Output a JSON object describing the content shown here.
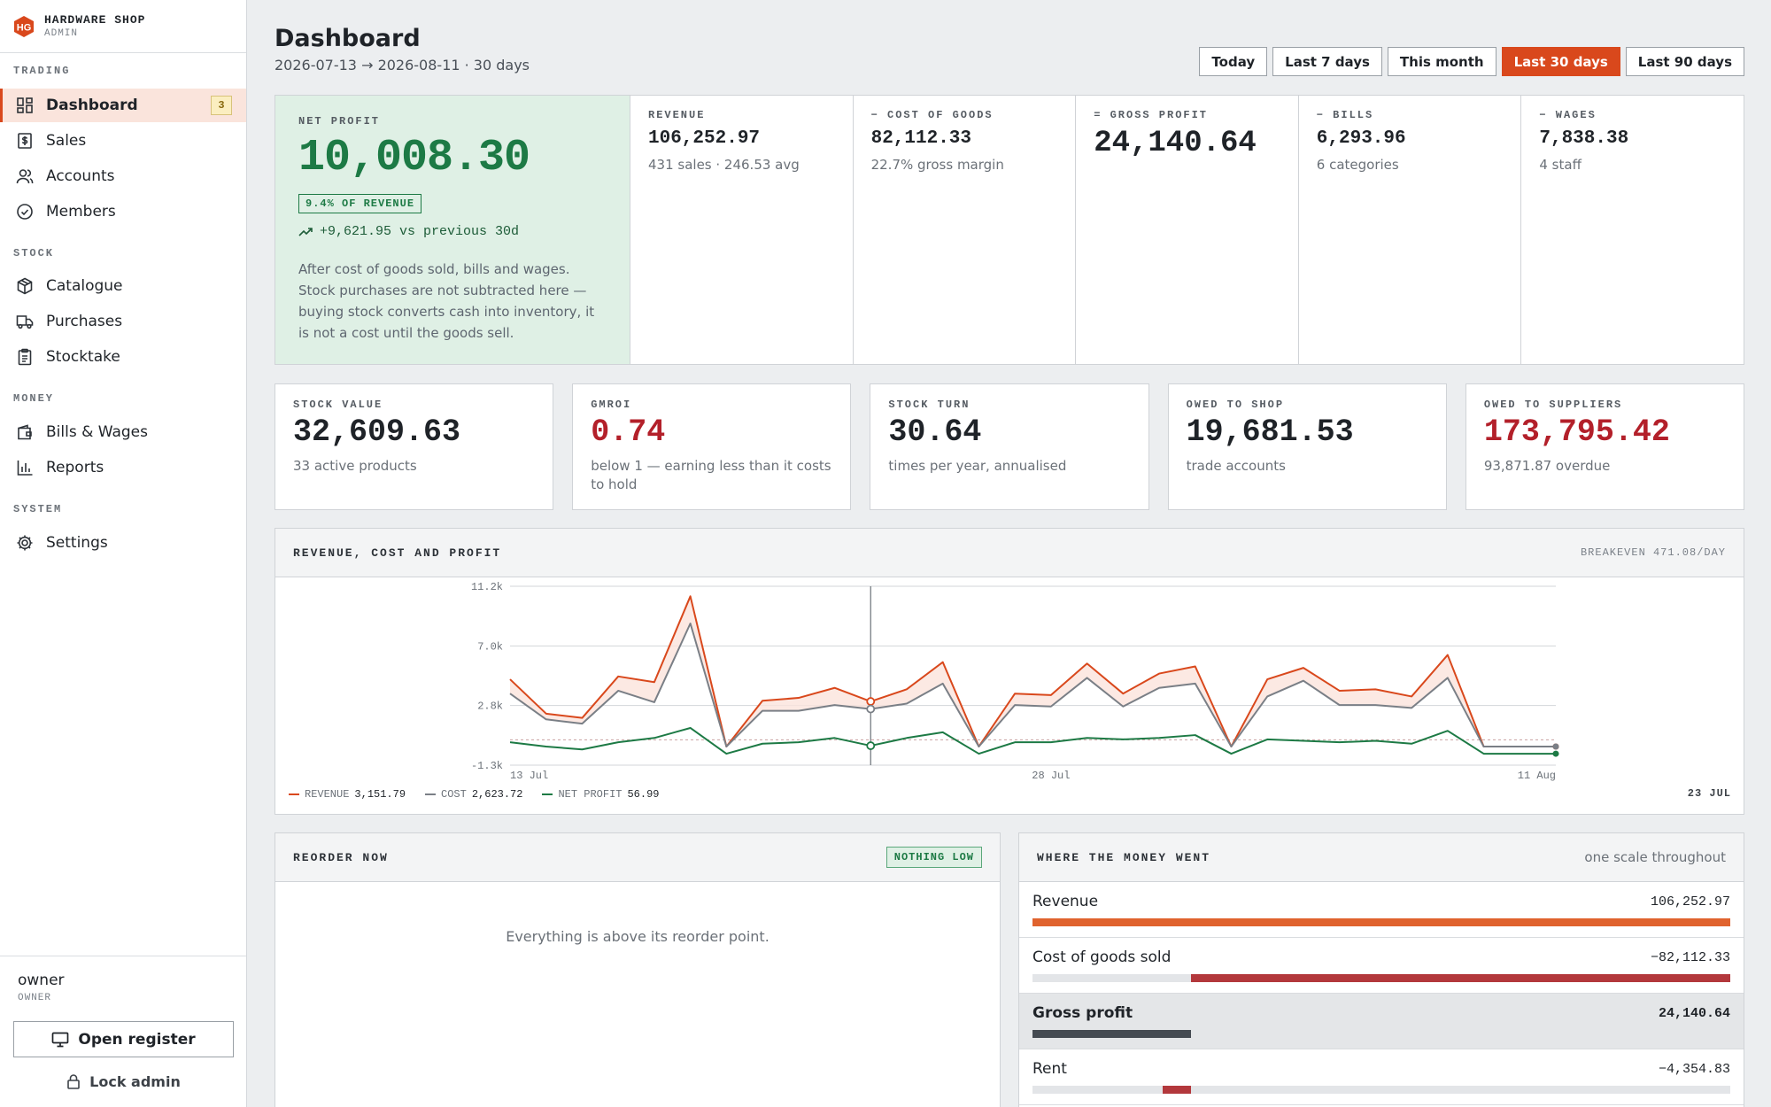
{
  "brand": {
    "name": "HARDWARE SHOP",
    "sub": "ADMIN",
    "logo_text": "HG"
  },
  "sidebar": {
    "sections": [
      {
        "title": "TRADING",
        "items": [
          {
            "label": "Dashboard",
            "icon": "dashboard-icon",
            "active": true,
            "badge": "3"
          },
          {
            "label": "Sales",
            "icon": "receipt-icon"
          },
          {
            "label": "Accounts",
            "icon": "users-icon"
          },
          {
            "label": "Members",
            "icon": "badge-icon"
          }
        ]
      },
      {
        "title": "STOCK",
        "items": [
          {
            "label": "Catalogue",
            "icon": "box-icon"
          },
          {
            "label": "Purchases",
            "icon": "truck-icon"
          },
          {
            "label": "Stocktake",
            "icon": "clipboard-icon"
          }
        ]
      },
      {
        "title": "MONEY",
        "items": [
          {
            "label": "Bills & Wages",
            "icon": "wallet-icon"
          },
          {
            "label": "Reports",
            "icon": "bar-chart-icon"
          }
        ]
      },
      {
        "title": "SYSTEM",
        "items": [
          {
            "label": "Settings",
            "icon": "gear-icon"
          }
        ]
      }
    ],
    "user": {
      "name": "owner",
      "role": "OWNER"
    },
    "open_register": "Open register",
    "lock_admin": "Lock admin"
  },
  "header": {
    "title": "Dashboard",
    "subtitle": "2026-07-13 → 2026-08-11 · 30 days",
    "ranges": [
      "Today",
      "Last 7 days",
      "This month",
      "Last 30 days",
      "Last 90 days"
    ],
    "selected_range": "Last 30 days"
  },
  "net_profit": {
    "label": "NET PROFIT",
    "value": "10,008.30",
    "pill": "9.4% OF REVENUE",
    "trend": "+9,621.95 vs previous 30d",
    "desc": "After cost of goods sold, bills and wages. Stock purchases are not subtracted here — buying stock converts cash into inventory, it is not a cost until the goods sell."
  },
  "kpis": [
    {
      "label": "REVENUE",
      "value": "106,252.97",
      "sub": "431 sales · 246.53 avg"
    },
    {
      "label": "− COST OF GOODS",
      "value": "82,112.33",
      "sub": "22.7% gross margin"
    },
    {
      "label": "= GROSS PROFIT",
      "value": "24,140.64",
      "sub": "",
      "big": true
    },
    {
      "label": "− BILLS",
      "value": "6,293.96",
      "sub": "6 categories"
    },
    {
      "label": "− WAGES",
      "value": "7,838.38",
      "sub": "4 staff"
    }
  ],
  "cards": [
    {
      "label": "STOCK VALUE",
      "value": "32,609.63",
      "sub": "33 active products",
      "red": false
    },
    {
      "label": "GMROI",
      "value": "0.74",
      "sub": "below 1 — earning less than it costs to hold",
      "red": true
    },
    {
      "label": "STOCK TURN",
      "value": "30.64",
      "sub": "times per year, annualised",
      "red": false
    },
    {
      "label": "OWED TO SHOP",
      "value": "19,681.53",
      "sub": "trade accounts",
      "red": false
    },
    {
      "label": "OWED TO SUPPLIERS",
      "value": "173,795.42",
      "sub": "93,871.87 overdue",
      "red": true
    }
  ],
  "chart_panel": {
    "title": "REVENUE, COST AND PROFIT",
    "right": "BREAKEVEN 471.08/DAY",
    "hover_date": "23 JUL",
    "legend": [
      {
        "name": "REVENUE",
        "value": "3,151.79",
        "color": "#d9481c"
      },
      {
        "name": "COST",
        "value": "2,623.72",
        "color": "#7a7f86"
      },
      {
        "name": "NET PROFIT",
        "value": "56.99",
        "color": "#1d7a45"
      }
    ]
  },
  "chart_data": {
    "type": "line",
    "x": [
      "13 Jul",
      "14 Jul",
      "15 Jul",
      "16 Jul",
      "17 Jul",
      "18 Jul",
      "19 Jul",
      "20 Jul",
      "21 Jul",
      "22 Jul",
      "23 Jul",
      "24 Jul",
      "25 Jul",
      "26 Jul",
      "27 Jul",
      "28 Jul",
      "29 Jul",
      "30 Jul",
      "31 Jul",
      "1 Aug",
      "2 Aug",
      "3 Aug",
      "4 Aug",
      "5 Aug",
      "6 Aug",
      "7 Aug",
      "8 Aug",
      "9 Aug",
      "10 Aug",
      "11 Aug"
    ],
    "x_tick_labels": [
      "13 Jul",
      "28 Jul",
      "11 Aug"
    ],
    "y_tick_labels": [
      "11.2k",
      "7.0k",
      "2.8k",
      "-1.3k"
    ],
    "ylim": [
      -1300,
      11200
    ],
    "breakeven": 471.08,
    "hover_index": 10,
    "series": [
      {
        "name": "REVENUE",
        "color": "#d9481c",
        "values": [
          4700,
          2300,
          2000,
          4900,
          4500,
          10500,
          0,
          3200,
          3400,
          4100,
          3152,
          4000,
          5900,
          0,
          3700,
          3600,
          5800,
          3700,
          5100,
          5600,
          0,
          4700,
          5500,
          3900,
          4000,
          3500,
          6400,
          0,
          0,
          0
        ]
      },
      {
        "name": "COST",
        "color": "#7a7f86",
        "values": [
          3700,
          1900,
          1600,
          3900,
          3100,
          8600,
          0,
          2500,
          2500,
          2900,
          2624,
          3000,
          4400,
          0,
          2900,
          2800,
          4800,
          2800,
          4100,
          4400,
          0,
          3500,
          4600,
          2900,
          2900,
          2700,
          4800,
          0,
          0,
          0
        ]
      },
      {
        "name": "NET PROFIT",
        "color": "#1d7a45",
        "values": [
          300,
          0,
          -200,
          300,
          600,
          1300,
          -500,
          200,
          300,
          600,
          57,
          600,
          1000,
          -500,
          300,
          300,
          600,
          500,
          600,
          800,
          -500,
          500,
          400,
          300,
          400,
          200,
          1100,
          -500,
          -500,
          -500
        ]
      }
    ]
  },
  "reorder": {
    "title": "REORDER NOW",
    "badge": "NOTHING LOW",
    "empty": "Everything is above its reorder point."
  },
  "money": {
    "title": "WHERE THE MONEY WENT",
    "right": "one scale throughout",
    "rows": [
      {
        "label": "Revenue",
        "value": "106,252.97",
        "amount": 106252.97,
        "from": 0,
        "color": "#e0632e",
        "highlight": false
      },
      {
        "label": "Cost of goods sold",
        "value": "−82,112.33",
        "amount": 82112.33,
        "from": 24140.64,
        "color": "#b3383c",
        "highlight": false
      },
      {
        "label": "Gross profit",
        "value": "24,140.64",
        "amount": 24140.64,
        "from": 0,
        "color": "#454b52",
        "highlight": true
      },
      {
        "label": "Rent",
        "value": "−4,354.83",
        "amount": 4354.83,
        "from": 19785.81,
        "color": "#b3383c",
        "highlight": false
      }
    ]
  }
}
